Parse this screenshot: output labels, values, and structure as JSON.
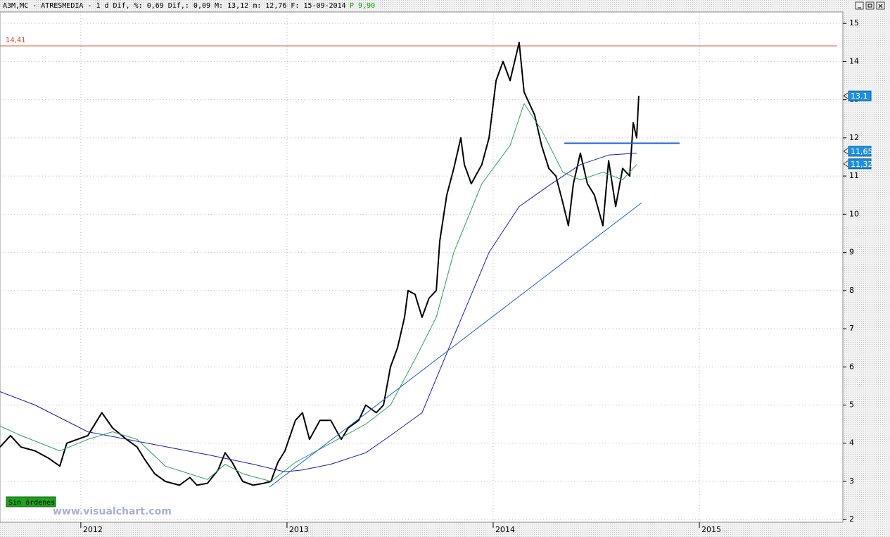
{
  "chart_data": {
    "type": "line",
    "title": "A3M,MC - ATRESMEDIA -  1 d Dif, %: 0,69 Dif,: 0,09 M: 13,12 m: 12,76 F: 15-09-2014",
    "subtitle": "P  9,90",
    "badge": "Sin órdenes",
    "watermark": "www.visualchart.com",
    "xlim": [
      2011.608,
      2015.696
    ],
    "xticks": [
      2012,
      2013,
      2014,
      2015
    ],
    "ylim": [
      1.93,
      15.28
    ],
    "yticks": [
      2,
      3,
      4,
      5,
      6,
      7,
      8,
      9,
      10,
      11,
      12,
      13,
      14,
      15
    ],
    "grid": true,
    "series": [
      {
        "color": "#000000",
        "x": [
          2011.608,
          2011.659,
          2011.71,
          2011.778,
          2011.846,
          2011.898,
          2011.932,
          2011.983,
          2012.034,
          2012.102,
          2012.154,
          2012.222,
          2012.273,
          2012.307,
          2012.358,
          2012.41,
          2012.478,
          2012.529,
          2012.563,
          2012.614,
          2012.666,
          2012.7,
          2012.734,
          2012.785,
          2012.836,
          2012.887,
          2012.922,
          2012.956,
          2012.99,
          2013.041,
          2013.075,
          2013.109,
          2013.16,
          2013.212,
          2013.263,
          2013.297,
          2013.348,
          2013.382,
          2013.433,
          2013.468,
          2013.502,
          2013.536,
          2013.57,
          2013.587,
          2013.621,
          2013.655,
          2013.689,
          2013.724,
          2013.741,
          2013.775,
          2013.809,
          2013.843,
          2013.86,
          2013.894,
          2013.945,
          2013.98,
          2014.014,
          2014.048,
          2014.082,
          2014.126,
          2014.15,
          2014.201,
          2014.235,
          2014.27,
          2014.304,
          2014.338,
          2014.365,
          2014.389,
          2014.423,
          2014.457,
          2014.491,
          2014.532,
          2014.56,
          2014.594,
          2014.628,
          2014.662,
          2014.679,
          2014.696,
          2014.706
        ],
        "values": [
          3.9,
          4.2,
          3.9,
          3.8,
          3.6,
          3.4,
          4.0,
          4.1,
          4.2,
          4.8,
          4.4,
          4.1,
          3.9,
          3.6,
          3.2,
          3.0,
          2.9,
          3.1,
          2.9,
          2.95,
          3.3,
          3.75,
          3.5,
          3.0,
          2.9,
          2.95,
          3.0,
          3.5,
          3.8,
          4.6,
          4.8,
          4.1,
          4.6,
          4.6,
          4.1,
          4.4,
          4.6,
          5.0,
          4.8,
          5.0,
          6.0,
          6.5,
          7.3,
          8.0,
          7.9,
          7.3,
          7.8,
          8.0,
          9.3,
          10.5,
          11.2,
          12.0,
          11.3,
          10.8,
          11.3,
          12.0,
          13.5,
          14.0,
          13.5,
          14.5,
          13.2,
          12.6,
          11.8,
          11.2,
          11.0,
          10.3,
          9.7,
          10.8,
          11.6,
          10.8,
          10.5,
          9.7,
          11.4,
          10.2,
          11.2,
          11.0,
          12.4,
          12.0,
          13.1
        ]
      },
      {
        "color": "#1a1ab8",
        "x": [
          2011.608,
          2011.778,
          2012.034,
          2012.273,
          2012.614,
          2012.836,
          2012.99,
          2013.075,
          2013.212,
          2013.382,
          2013.502,
          2013.655,
          2013.809,
          2013.98,
          2014.126,
          2014.27,
          2014.423,
          2014.56,
          2014.696
        ],
        "values": [
          5.35,
          5.0,
          4.3,
          4.05,
          3.7,
          3.45,
          3.25,
          3.3,
          3.45,
          3.75,
          4.2,
          4.8,
          6.8,
          9.0,
          10.2,
          10.75,
          11.3,
          11.55,
          11.6
        ]
      },
      {
        "color": "#2e9e5e",
        "x": [
          2011.608,
          2011.71,
          2011.898,
          2012.034,
          2012.154,
          2012.273,
          2012.41,
          2012.614,
          2012.7,
          2012.785,
          2012.922,
          2013.041,
          2013.212,
          2013.382,
          2013.502,
          2013.621,
          2013.724,
          2013.809,
          2013.945,
          2014.082,
          2014.15,
          2014.235,
          2014.338,
          2014.423,
          2014.532,
          2014.628,
          2014.696
        ],
        "values": [
          4.45,
          4.2,
          3.8,
          4.1,
          4.3,
          4.1,
          3.4,
          3.05,
          3.45,
          3.2,
          3.0,
          3.5,
          4.0,
          4.5,
          5.0,
          6.2,
          7.3,
          9.0,
          10.8,
          11.8,
          12.9,
          12.2,
          11.1,
          10.9,
          11.1,
          10.9,
          11.3
        ]
      }
    ],
    "lines": [
      {
        "color": "#1a5fd8",
        "width": 1,
        "x": [
          2012.915,
          2014.72
        ],
        "values": [
          2.85,
          10.3
        ]
      },
      {
        "color": "#1a5fd8",
        "width": 2,
        "x": [
          2014.345,
          2014.904
        ],
        "values": [
          11.86,
          11.86
        ]
      }
    ],
    "hline": {
      "value": 14.41,
      "label": "14,41",
      "color": "#e0401a"
    },
    "price_labels": [
      {
        "value": 13.1,
        "label": "13.1"
      },
      {
        "value": 11.65,
        "label": "11,65"
      },
      {
        "value": 11.32,
        "label": "11,32"
      }
    ]
  }
}
